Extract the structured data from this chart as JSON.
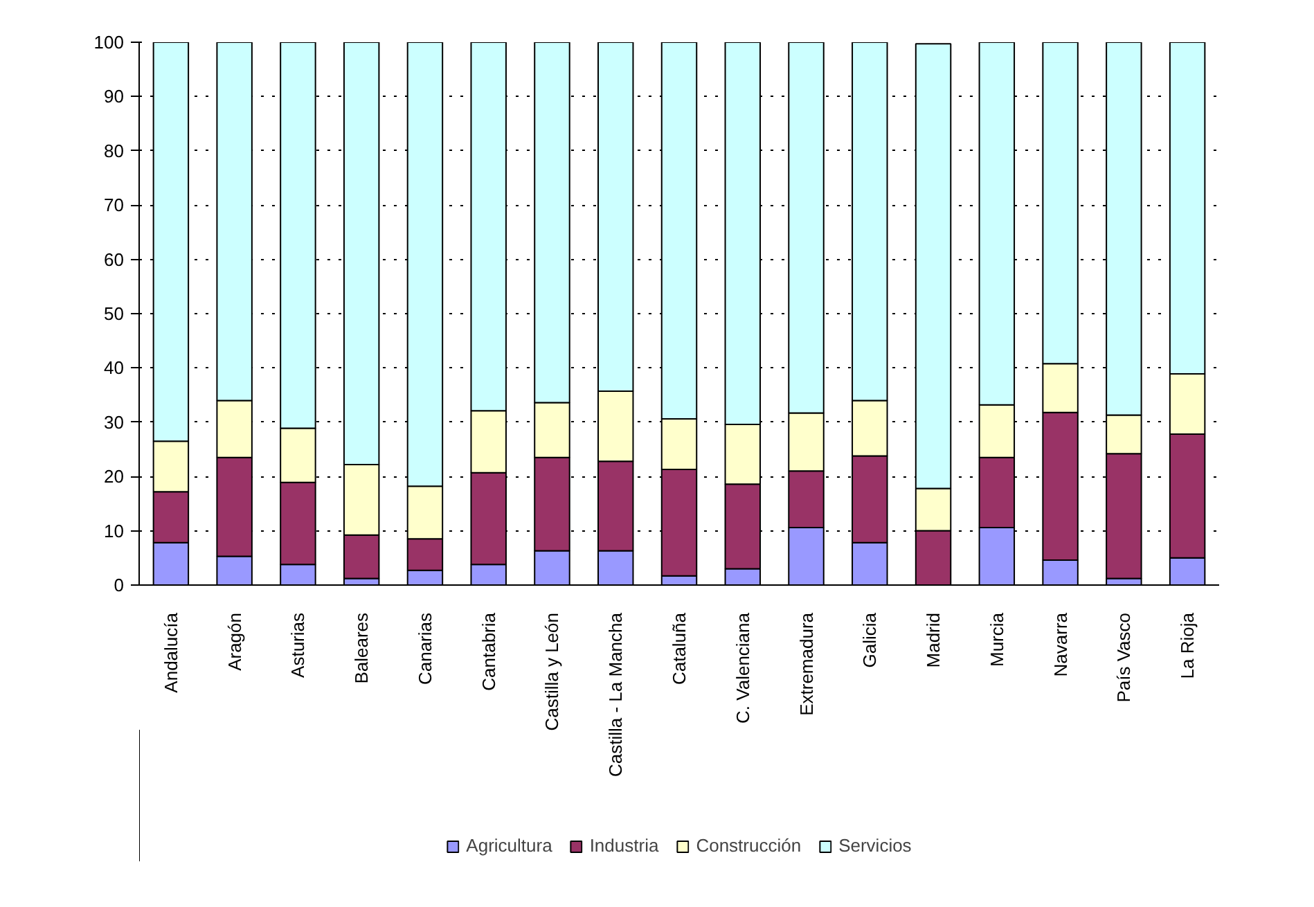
{
  "chart_data": {
    "type": "bar",
    "stacked": true,
    "categories": [
      "Andalucía",
      "Aragón",
      "Asturias",
      "Baleares",
      "Canarias",
      "Cantabria",
      "Castilla y León",
      "Castilla - La Mancha",
      "Cataluña",
      "C. Valenciana",
      "Extremadura",
      "Galicia",
      "Madrid",
      "Murcia",
      "Navarra",
      "País Vasco",
      "La Rioja"
    ],
    "series": [
      {
        "name": "Agricultura",
        "color": "#9999ff",
        "values": [
          7.8,
          5.3,
          3.8,
          1.2,
          2.7,
          3.8,
          6.3,
          6.3,
          1.7,
          3.0,
          10.6,
          7.8,
          null,
          10.6,
          4.6,
          1.2,
          5.0
        ]
      },
      {
        "name": "Industria",
        "color": "#993366",
        "values": [
          9.4,
          18.2,
          15.1,
          8.0,
          5.8,
          16.9,
          17.2,
          16.5,
          19.6,
          15.6,
          10.4,
          16.0,
          10.0,
          12.9,
          27.2,
          23.0,
          22.8
        ]
      },
      {
        "name": "Construcción",
        "color": "#ffffcc",
        "values": [
          9.3,
          10.5,
          10.0,
          13.0,
          9.7,
          11.4,
          10.1,
          12.9,
          9.3,
          11.0,
          10.7,
          10.2,
          7.8,
          9.7,
          9.0,
          7.1,
          11.1
        ]
      },
      {
        "name": "Servicios",
        "color": "#ccffff",
        "values": [
          73.5,
          66.0,
          71.1,
          77.8,
          81.8,
          67.9,
          66.4,
          64.3,
          69.4,
          70.4,
          68.3,
          66.0,
          81.9,
          66.8,
          59.2,
          68.7,
          61.1
        ]
      }
    ],
    "ylim": [
      0,
      100
    ],
    "yticks": [
      0,
      10,
      20,
      30,
      40,
      50,
      60,
      70,
      80,
      90,
      100
    ],
    "grid": "y",
    "legend": "bottom"
  }
}
